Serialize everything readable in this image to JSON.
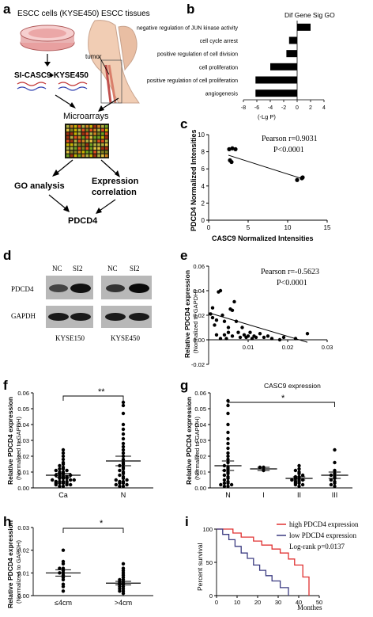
{
  "panels": {
    "a": {
      "letter": "a",
      "cells_label": "ESCC cells (KYSE450)",
      "tissues_label": "ESCC tissues",
      "tumor_label": "tumor",
      "si_casc9": "SI-CASC9",
      "kyse450": "KYSE450",
      "microarrays": "Microarrays",
      "go_analysis": "GO analysis",
      "expr_corr_1": "Expression",
      "expr_corr_2": "correlation",
      "pdcd4": "PDCD4"
    },
    "b": {
      "letter": "b"
    },
    "c": {
      "letter": "c"
    },
    "d": {
      "letter": "d",
      "nc1": "NC",
      "si1": "SI2",
      "nc2": "NC",
      "si2": "SI2",
      "row1": "PDCD4",
      "row2": "GAPDH",
      "line1": "KYSE150",
      "line2": "KYSE450"
    },
    "e": {
      "letter": "e"
    },
    "f": {
      "letter": "f",
      "sig": "**"
    },
    "g": {
      "letter": "g",
      "sig": "*"
    },
    "h": {
      "letter": "h",
      "sig": "*"
    },
    "i": {
      "letter": "i"
    }
  },
  "chart_data": [
    {
      "panel": "b",
      "type": "bar",
      "title": "Dif Gene Sig GO",
      "xlabel": "(-Lg P)",
      "orientation": "horizontal",
      "categories": [
        "negative regulation of JUN kinase activity",
        "cell cycle arrest",
        "positive regulation of cell division",
        "cell proliferation",
        "positive regulation of cell proliferation",
        "angiogenesis"
      ],
      "values": [
        2.0,
        -1.2,
        -1.6,
        -4.0,
        -6.2,
        -6.2
      ],
      "xlim": [
        -8,
        4
      ],
      "xticks": [
        "-8",
        "-6",
        "-4",
        "-2",
        "0",
        "2",
        "4"
      ]
    },
    {
      "panel": "c",
      "type": "scatter",
      "xlabel": "CASC9 Normalized Intensities",
      "ylabel": "PDCD4 Normalized Intensities",
      "annotation1": "Pearson r=0.9031",
      "annotation2": "P<0.0001",
      "xlim": [
        0,
        15
      ],
      "ylim": [
        0,
        10
      ],
      "xticks": [
        "0",
        "5",
        "10",
        "15"
      ],
      "yticks": [
        "0",
        "2",
        "4",
        "6",
        "8",
        "10"
      ],
      "points": [
        [
          2.6,
          8.3
        ],
        [
          3.0,
          8.4
        ],
        [
          3.4,
          8.3
        ],
        [
          2.7,
          7.0
        ],
        [
          2.9,
          6.8
        ],
        [
          11.2,
          4.7
        ],
        [
          11.8,
          4.9
        ],
        [
          11.9,
          5.0
        ]
      ],
      "fit": [
        [
          2.5,
          7.6
        ],
        [
          12.0,
          4.8
        ]
      ]
    },
    {
      "panel": "e",
      "type": "scatter",
      "ylabel1": "Relative PDCD4 expression",
      "ylabel2": "(Normalized to GAPDH)",
      "annotation1": "Pearson r=-0.5623",
      "annotation2": "P<0.0001",
      "xlim": [
        0,
        0.03
      ],
      "ylim": [
        -0.02,
        0.06
      ],
      "xticks": [
        "0.01",
        "0.02",
        "0.03"
      ],
      "yticks": [
        "-0.02",
        "0.00",
        "0.02",
        "0.04",
        "0.06"
      ],
      "points": [
        [
          0.0005,
          0.021
        ],
        [
          0.001,
          0.026
        ],
        [
          0.001,
          0.018
        ],
        [
          0.0015,
          0.012
        ],
        [
          0.002,
          0.016
        ],
        [
          0.002,
          0.004
        ],
        [
          0.0025,
          0.039
        ],
        [
          0.003,
          0.04
        ],
        [
          0.003,
          0.001
        ],
        [
          0.0035,
          0.02
        ],
        [
          0.004,
          0.015
        ],
        [
          0.004,
          0.004
        ],
        [
          0.0045,
          0.001
        ],
        [
          0.005,
          0.01
        ],
        [
          0.005,
          0.006
        ],
        [
          0.0055,
          0.025
        ],
        [
          0.006,
          0.024
        ],
        [
          0.006,
          0.003
        ],
        [
          0.0065,
          0.031
        ],
        [
          0.007,
          0.015
        ],
        [
          0.0075,
          0.006
        ],
        [
          0.008,
          0.002
        ],
        [
          0.0085,
          0.01
        ],
        [
          0.009,
          0.004
        ],
        [
          0.0095,
          0.002
        ],
        [
          0.01,
          0.003
        ],
        [
          0.0105,
          0.006
        ],
        [
          0.011,
          0.001
        ],
        [
          0.0115,
          0.003
        ],
        [
          0.012,
          0.002
        ],
        [
          0.013,
          0.005
        ],
        [
          0.014,
          0.002
        ],
        [
          0.015,
          0.003
        ],
        [
          0.016,
          0.001
        ],
        [
          0.018,
          0.0
        ],
        [
          0.019,
          0.002
        ],
        [
          0.022,
          0.001
        ],
        [
          0.025,
          0.005
        ]
      ],
      "fit": [
        [
          0.0,
          0.022
        ],
        [
          0.025,
          -0.002
        ]
      ]
    },
    {
      "panel": "f",
      "type": "scatter",
      "ylabel1": "Relative PDCD4 expression",
      "ylabel2": "(Normalized to GAPDH)",
      "categories": [
        "Ca",
        "N"
      ],
      "ylim": [
        0,
        0.06
      ],
      "yticks": [
        "0.00",
        "0.01",
        "0.02",
        "0.03",
        "0.04",
        "0.05",
        "0.06"
      ],
      "groups": [
        {
          "name": "Ca",
          "mean": 0.008,
          "sem": 0.0012,
          "values": [
            0.001,
            0.001,
            0.002,
            0.002,
            0.002,
            0.003,
            0.003,
            0.003,
            0.003,
            0.004,
            0.004,
            0.004,
            0.004,
            0.005,
            0.005,
            0.005,
            0.006,
            0.006,
            0.006,
            0.007,
            0.007,
            0.007,
            0.008,
            0.008,
            0.009,
            0.009,
            0.01,
            0.01,
            0.011,
            0.011,
            0.012,
            0.012,
            0.013,
            0.014,
            0.015,
            0.016,
            0.018,
            0.02,
            0.022,
            0.024
          ]
        },
        {
          "name": "N",
          "mean": 0.017,
          "sem": 0.003,
          "values": [
            0.001,
            0.001,
            0.002,
            0.002,
            0.003,
            0.003,
            0.004,
            0.004,
            0.005,
            0.005,
            0.006,
            0.007,
            0.008,
            0.009,
            0.01,
            0.011,
            0.012,
            0.013,
            0.014,
            0.015,
            0.016,
            0.018,
            0.02,
            0.022,
            0.024,
            0.026,
            0.028,
            0.031,
            0.034,
            0.037,
            0.04,
            0.047,
            0.052,
            0.054
          ]
        }
      ]
    },
    {
      "panel": "g",
      "type": "scatter",
      "title": "CASC9 expression",
      "ylabel1": "Relative PDCD4 expression",
      "ylabel2": "(Normalized to GAPDH)",
      "categories": [
        "N",
        "I",
        "II",
        "III"
      ],
      "ylim": [
        0,
        0.06
      ],
      "yticks": [
        "0.00",
        "0.01",
        "0.02",
        "0.03",
        "0.04",
        "0.05",
        "0.06"
      ],
      "groups": [
        {
          "name": "N",
          "mean": 0.014,
          "sem": 0.003,
          "values": [
            0.001,
            0.001,
            0.002,
            0.002,
            0.003,
            0.003,
            0.004,
            0.005,
            0.006,
            0.007,
            0.008,
            0.009,
            0.01,
            0.011,
            0.012,
            0.013,
            0.014,
            0.016,
            0.018,
            0.02,
            0.022,
            0.025,
            0.028,
            0.031,
            0.035,
            0.04,
            0.047,
            0.052,
            0.055
          ]
        },
        {
          "name": "I",
          "mean": 0.012,
          "sem": 0.001,
          "values": [
            0.011,
            0.013,
            0.013
          ]
        },
        {
          "name": "II",
          "mean": 0.006,
          "sem": 0.001,
          "values": [
            0.001,
            0.002,
            0.002,
            0.003,
            0.003,
            0.004,
            0.004,
            0.005,
            0.005,
            0.006,
            0.006,
            0.007,
            0.007,
            0.008,
            0.009,
            0.01,
            0.011,
            0.012,
            0.014
          ]
        },
        {
          "name": "III",
          "mean": 0.008,
          "sem": 0.002,
          "values": [
            0.001,
            0.002,
            0.003,
            0.004,
            0.005,
            0.006,
            0.007,
            0.008,
            0.009,
            0.011,
            0.016,
            0.024
          ]
        }
      ]
    },
    {
      "panel": "h",
      "type": "scatter",
      "ylabel1": "Relative PDCD4 expression",
      "ylabel2": "(Normalized to GAPDH)",
      "categories": [
        "≤4cm",
        ">4cm"
      ],
      "ylim": [
        0,
        0.03
      ],
      "yticks": [
        "0.00",
        "0.01",
        "0.02",
        "0.03"
      ],
      "groups": [
        {
          "name": "≤4cm",
          "mean": 0.01,
          "sem": 0.0014,
          "values": [
            0.002,
            0.004,
            0.005,
            0.007,
            0.008,
            0.009,
            0.01,
            0.01,
            0.011,
            0.012,
            0.012,
            0.014,
            0.015,
            0.02
          ]
        },
        {
          "name": ">4cm",
          "mean": 0.0055,
          "sem": 0.0008,
          "values": [
            0.001,
            0.002,
            0.002,
            0.003,
            0.003,
            0.004,
            0.004,
            0.005,
            0.005,
            0.006,
            0.006,
            0.007,
            0.007,
            0.008,
            0.009,
            0.01,
            0.011,
            0.012,
            0.014
          ]
        }
      ]
    },
    {
      "panel": "i",
      "type": "line",
      "xlabel": "Monthes",
      "ylabel": "Percent survival",
      "xlim": [
        0,
        50
      ],
      "ylim": [
        0,
        100
      ],
      "xticks": [
        "0",
        "10",
        "20",
        "30",
        "40",
        "50"
      ],
      "yticks": [
        "0",
        "50",
        "100"
      ],
      "legend_position": "top-right",
      "annotation": "Log-rank p=0.0137",
      "series": [
        {
          "name": "high PDCD4 expression",
          "color": "#e03030",
          "steps": [
            [
              0,
              100
            ],
            [
              8,
              100
            ],
            [
              8,
              94
            ],
            [
              12,
              94
            ],
            [
              12,
              88
            ],
            [
              18,
              88
            ],
            [
              18,
              82
            ],
            [
              22,
              82
            ],
            [
              22,
              76
            ],
            [
              27,
              76
            ],
            [
              27,
              70
            ],
            [
              31,
              70
            ],
            [
              31,
              64
            ],
            [
              35,
              64
            ],
            [
              35,
              55
            ],
            [
              38,
              55
            ],
            [
              38,
              46
            ],
            [
              42,
              46
            ],
            [
              42,
              28
            ],
            [
              45,
              28
            ],
            [
              45,
              0
            ]
          ]
        },
        {
          "name": "low PDCD4 expression",
          "color": "#3a3a80",
          "steps": [
            [
              0,
              100
            ],
            [
              3,
              100
            ],
            [
              3,
              92
            ],
            [
              6,
              92
            ],
            [
              6,
              84
            ],
            [
              9,
              84
            ],
            [
              9,
              74
            ],
            [
              12,
              74
            ],
            [
              12,
              64
            ],
            [
              15,
              64
            ],
            [
              15,
              56
            ],
            [
              18,
              56
            ],
            [
              18,
              46
            ],
            [
              21,
              46
            ],
            [
              21,
              38
            ],
            [
              24,
              38
            ],
            [
              24,
              30
            ],
            [
              27,
              30
            ],
            [
              27,
              22
            ],
            [
              31,
              22
            ],
            [
              31,
              12
            ],
            [
              35,
              12
            ],
            [
              35,
              0
            ]
          ]
        }
      ]
    }
  ]
}
